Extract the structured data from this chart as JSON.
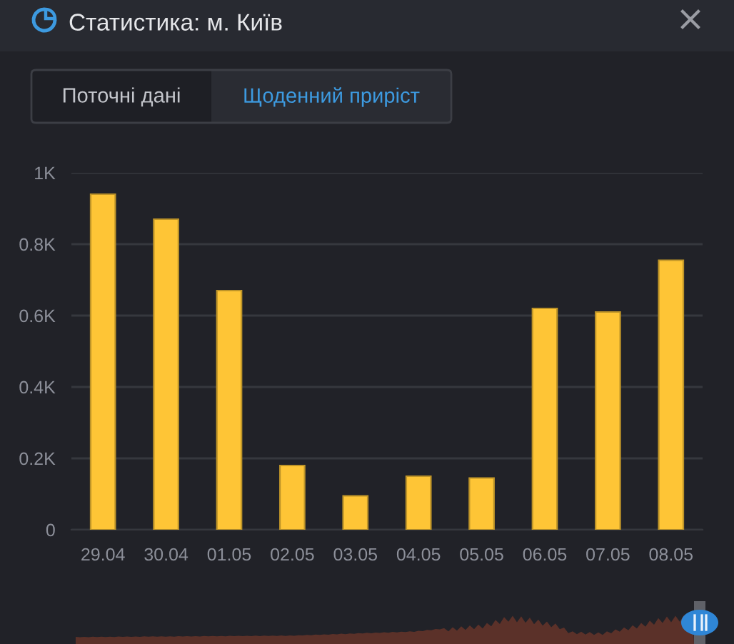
{
  "chart_data": {
    "type": "bar",
    "title": "Статистика: м. Київ",
    "annotations": [
      "Поточні дані",
      "Щоденний приріст"
    ],
    "categories": [
      "29.04",
      "30.04",
      "01.05",
      "02.05",
      "03.05",
      "04.05",
      "05.05",
      "06.05",
      "07.05",
      "08.05"
    ],
    "values": [
      940,
      870,
      670,
      180,
      95,
      150,
      145,
      620,
      610,
      755
    ],
    "color": "#fec536",
    "ylim": [
      0,
      1000
    ],
    "yticks": [
      0,
      {
        "value": 200,
        "label": "0.2K"
      },
      {
        "value": 400,
        "label": "0.4K"
      },
      {
        "value": 600,
        "label": "0.6K"
      },
      {
        "value": 800,
        "label": "0.8K"
      },
      {
        "value": 1000,
        "label": "1K"
      }
    ],
    "grid": "y"
  }
}
